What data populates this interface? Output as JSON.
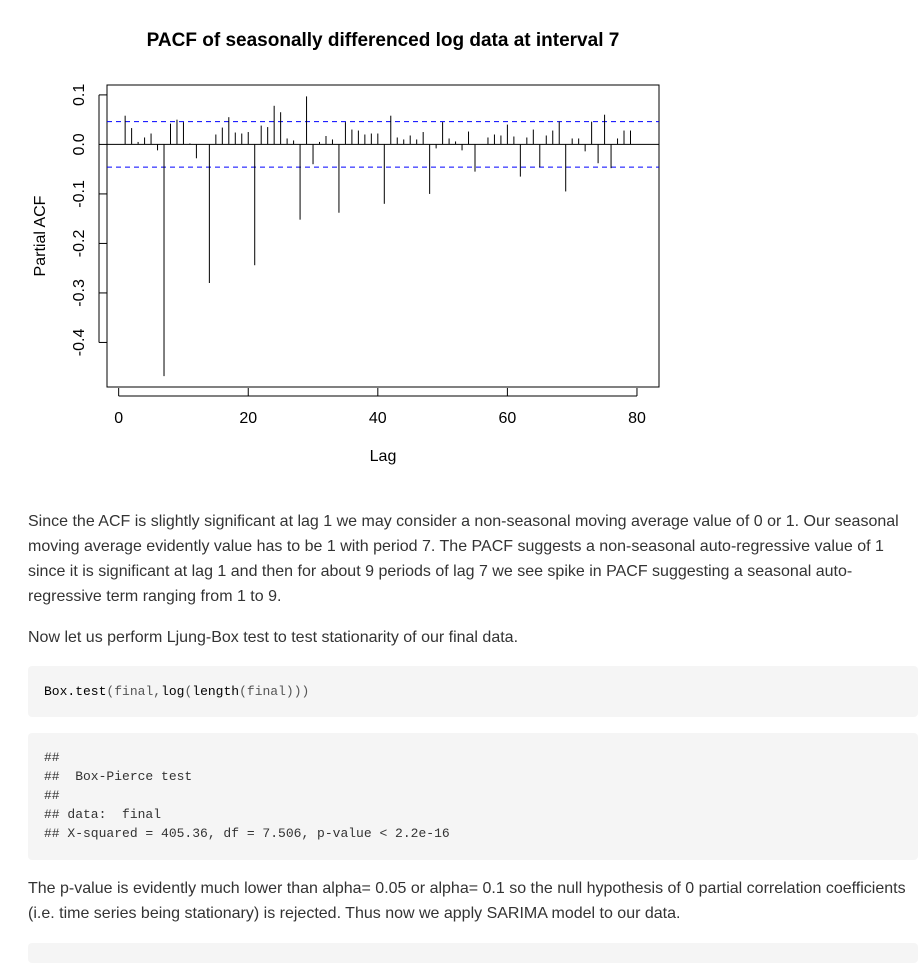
{
  "chart_data": {
    "type": "bar",
    "title": "PACF of seasonally differenced log data at interval 7",
    "xlabel": "Lag",
    "ylabel": "Partial ACF",
    "xlim": [
      -1.8,
      83.4
    ],
    "ylim": [
      -0.49,
      0.12
    ],
    "x_ticks": [
      "0",
      "20",
      "40",
      "60",
      "80"
    ],
    "y_ticks": [
      "-0.4",
      "-0.3",
      "-0.2",
      "-0.1",
      "0.0",
      "0.1"
    ],
    "confidence_limit": 0.046,
    "series_color": "#000000",
    "ci_color": "#0000ff",
    "x": [
      1,
      2,
      3,
      4,
      5,
      6,
      7,
      8,
      9,
      10,
      11,
      12,
      13,
      14,
      15,
      16,
      17,
      18,
      19,
      20,
      21,
      22,
      23,
      24,
      25,
      26,
      27,
      28,
      29,
      30,
      31,
      32,
      33,
      34,
      35,
      36,
      37,
      38,
      39,
      40,
      41,
      42,
      43,
      44,
      45,
      46,
      47,
      48,
      49,
      50,
      51,
      52,
      53,
      54,
      55,
      56,
      57,
      58,
      59,
      60,
      61,
      62,
      63,
      64,
      65,
      66,
      67,
      68,
      69,
      70,
      71,
      72,
      73,
      74,
      75,
      76,
      77,
      78,
      79,
      80
    ],
    "values": [
      0.058,
      0.033,
      0.005,
      0.014,
      0.022,
      -0.012,
      -0.468,
      0.042,
      0.05,
      0.045,
      0.002,
      -0.028,
      0.0,
      -0.28,
      0.02,
      0.034,
      0.055,
      0.024,
      0.022,
      0.025,
      -0.244,
      0.038,
      0.035,
      0.078,
      0.065,
      0.012,
      0.008,
      -0.152,
      0.097,
      -0.04,
      0.005,
      0.017,
      0.01,
      -0.138,
      0.045,
      0.03,
      0.028,
      0.02,
      0.022,
      0.022,
      -0.12,
      0.058,
      0.014,
      0.01,
      0.018,
      0.01,
      0.025,
      -0.1,
      -0.008,
      0.045,
      0.012,
      0.006,
      -0.012,
      0.026,
      -0.055,
      0.0,
      0.014,
      0.02,
      0.018,
      0.04,
      0.016,
      -0.065,
      0.014,
      0.03,
      -0.046,
      0.018,
      0.028,
      0.046,
      -0.095,
      0.012,
      0.012,
      -0.014,
      0.046,
      -0.038,
      0.06,
      -0.048,
      0.012,
      0.028,
      0.028,
      0.0
    ]
  },
  "paragraphs": {
    "p1": "Since the ACF is slightly significant at lag 1 we may consider a non-seasonal moving average value of 0 or 1. Our seasonal moving average evidently value has to be 1 with period 7. The PACF suggests a non-seasonal auto-regressive value of 1 since it is significant at lag 1 and then for about 9 periods of lag 7 we see spike in PACF suggesting a seasonal auto-regressive term ranging from 1 to 9.",
    "p2": "Now let us perform Ljung-Box test to test stationarity of our final data.",
    "p3": "The p-value is evidently much lower than alpha= 0.05 or alpha= 0.1 so the null hypothesis of 0 partial correlation coefficients (i.e. time series being stationary) is rejected. Thus now we apply SARIMA model to our data."
  },
  "code": {
    "fn1": "Box.test",
    "open1": "(",
    "arg1": "final",
    "comma": ",",
    "fn2": "log",
    "open2": "(",
    "fn3": "length",
    "open3": "(",
    "arg2": "final",
    "close": ")))"
  },
  "output": {
    "lines": [
      "##",
      "##  Box-Pierce test",
      "##",
      "## data:  final",
      "## X-squared = 405.36, df = 7.506, p-value < 2.2e-16"
    ]
  }
}
